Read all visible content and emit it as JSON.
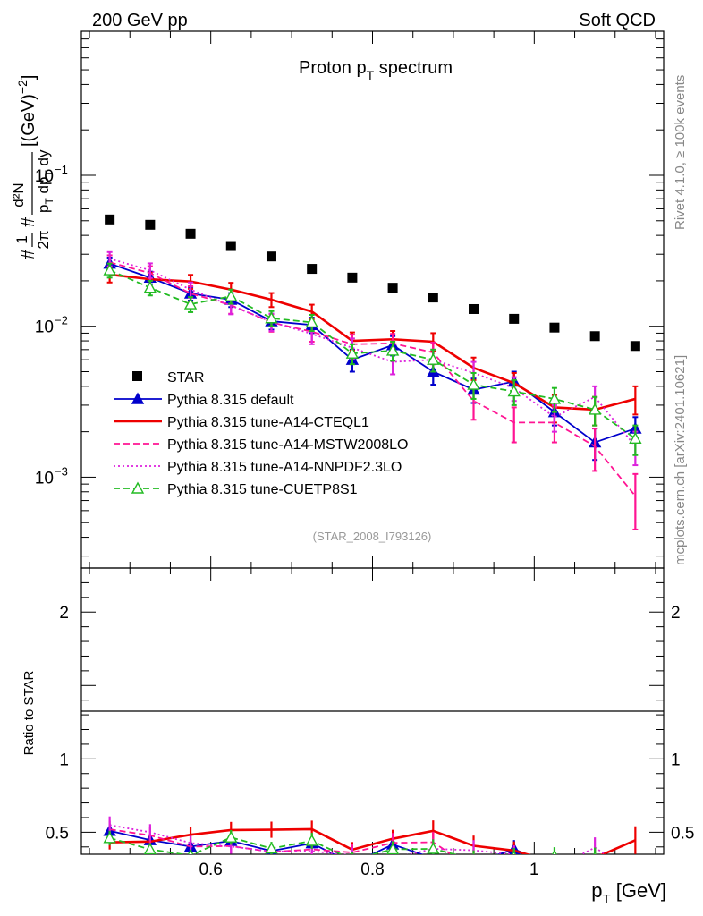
{
  "header": {
    "left": "200 GeV pp",
    "right": "Soft QCD"
  },
  "side": {
    "top": "Rivet 4.1.0, ≥ 100k events",
    "bottom": "mcplots.cern.ch [arXiv:2401.10621]"
  },
  "chart_data": {
    "type": "line",
    "title": "Proton p_T spectrum",
    "analysis_tag": "(STAR_2008_I793126)",
    "xlabel": "p_T [GeV]",
    "ylabel": "1/(2π p_T) d²N/(dp_T dy) [(GeV)^-2]",
    "ylabel_ratio": "Ratio to STAR",
    "xlim": [
      0.44,
      1.16
    ],
    "ylim": [
      0.00025,
      0.9
    ],
    "yscale": "log",
    "ratio_ylim": [
      0.35,
      2.3
    ],
    "xticks": [
      {
        "value": 0.6,
        "label": "0.6"
      },
      {
        "value": 0.8,
        "label": "0.8"
      },
      {
        "value": 1.0,
        "label": "1"
      }
    ],
    "yticks_main": [
      {
        "value": 0.1,
        "label": "10",
        "exp": "−1"
      },
      {
        "value": 0.01,
        "label": "10",
        "exp": "−2"
      },
      {
        "value": 0.001,
        "label": "10",
        "exp": "−3"
      }
    ],
    "yticks_ratio": [
      {
        "value": 0.5,
        "label": "0.5"
      },
      {
        "value": 1,
        "label": "1"
      },
      {
        "value": 2,
        "label": "2"
      }
    ],
    "x": [
      0.475,
      0.525,
      0.575,
      0.625,
      0.675,
      0.725,
      0.775,
      0.825,
      0.875,
      0.925,
      0.975,
      1.025,
      1.075,
      1.125
    ],
    "reference": {
      "name": "STAR",
      "values": [
        0.051,
        0.047,
        0.041,
        0.034,
        0.029,
        0.024,
        0.021,
        0.018,
        0.0155,
        0.013,
        0.0112,
        0.0098,
        0.0086,
        0.0074
      ]
    },
    "series": [
      {
        "name": "Pythia 8.315 default",
        "color": "#0000cc",
        "style": "solid",
        "marker": "triangle-filled",
        "values": [
          0.026,
          0.021,
          0.0165,
          0.015,
          0.0108,
          0.0102,
          0.006,
          0.0075,
          0.005,
          0.0038,
          0.0043,
          0.0027,
          0.0017,
          0.0021
        ],
        "errors": [
          0.0025,
          0.002,
          0.0017,
          0.0016,
          0.0013,
          0.0012,
          0.001,
          0.0011,
          0.0009,
          0.0007,
          0.0007,
          0.0005,
          0.0004,
          0.0004
        ]
      },
      {
        "name": "Pythia 8.315 tune-A14-CTEQL1",
        "color": "#ee0000",
        "style": "solid",
        "marker": "none",
        "values": [
          0.022,
          0.0205,
          0.0198,
          0.0175,
          0.015,
          0.0125,
          0.008,
          0.0082,
          0.0079,
          0.0053,
          0.0042,
          0.0029,
          0.0028,
          0.0033
        ],
        "errors": [
          0.0025,
          0.0022,
          0.0021,
          0.0019,
          0.0016,
          0.0014,
          0.0011,
          0.0011,
          0.0011,
          0.0009,
          0.0007,
          0.0006,
          0.0006,
          0.0007
        ]
      },
      {
        "name": "Pythia 8.315 tune-A14-MSTW2008LO",
        "color": "#ff1493",
        "style": "dashed",
        "marker": "none",
        "values": [
          0.0265,
          0.0225,
          0.0165,
          0.0138,
          0.0106,
          0.0092,
          0.0076,
          0.0077,
          0.0067,
          0.0032,
          0.0023,
          0.0023,
          0.0016,
          0.00075
        ],
        "errors": [
          0.003,
          0.0025,
          0.0019,
          0.0017,
          0.0014,
          0.0013,
          0.0012,
          0.0012,
          0.0011,
          0.0008,
          0.0006,
          0.0006,
          0.0005,
          0.0003
        ]
      },
      {
        "name": "Pythia 8.315 tune-A14-NNPDF2.3LO",
        "color": "#dd22dd",
        "style": "dotted",
        "marker": "none",
        "values": [
          0.028,
          0.0235,
          0.0175,
          0.0137,
          0.0107,
          0.0089,
          0.0072,
          0.0058,
          0.006,
          0.0049,
          0.0039,
          0.0025,
          0.0034,
          0.0016
        ],
        "errors": [
          0.003,
          0.0026,
          0.002,
          0.0017,
          0.0014,
          0.0013,
          0.0011,
          0.001,
          0.001,
          0.0009,
          0.0007,
          0.0005,
          0.0006,
          0.0004
        ]
      },
      {
        "name": "Pythia 8.315 tune-CUETP8S1",
        "color": "#22bb22",
        "style": "dashed",
        "marker": "triangle-open",
        "values": [
          0.0235,
          0.018,
          0.014,
          0.0158,
          0.0113,
          0.0106,
          0.0066,
          0.0069,
          0.006,
          0.0041,
          0.0037,
          0.0033,
          0.0028,
          0.0018
        ],
        "errors": [
          0.0025,
          0.002,
          0.0016,
          0.0017,
          0.0013,
          0.0013,
          0.001,
          0.001,
          0.001,
          0.0008,
          0.0007,
          0.0006,
          0.0006,
          0.0004
        ]
      }
    ]
  }
}
